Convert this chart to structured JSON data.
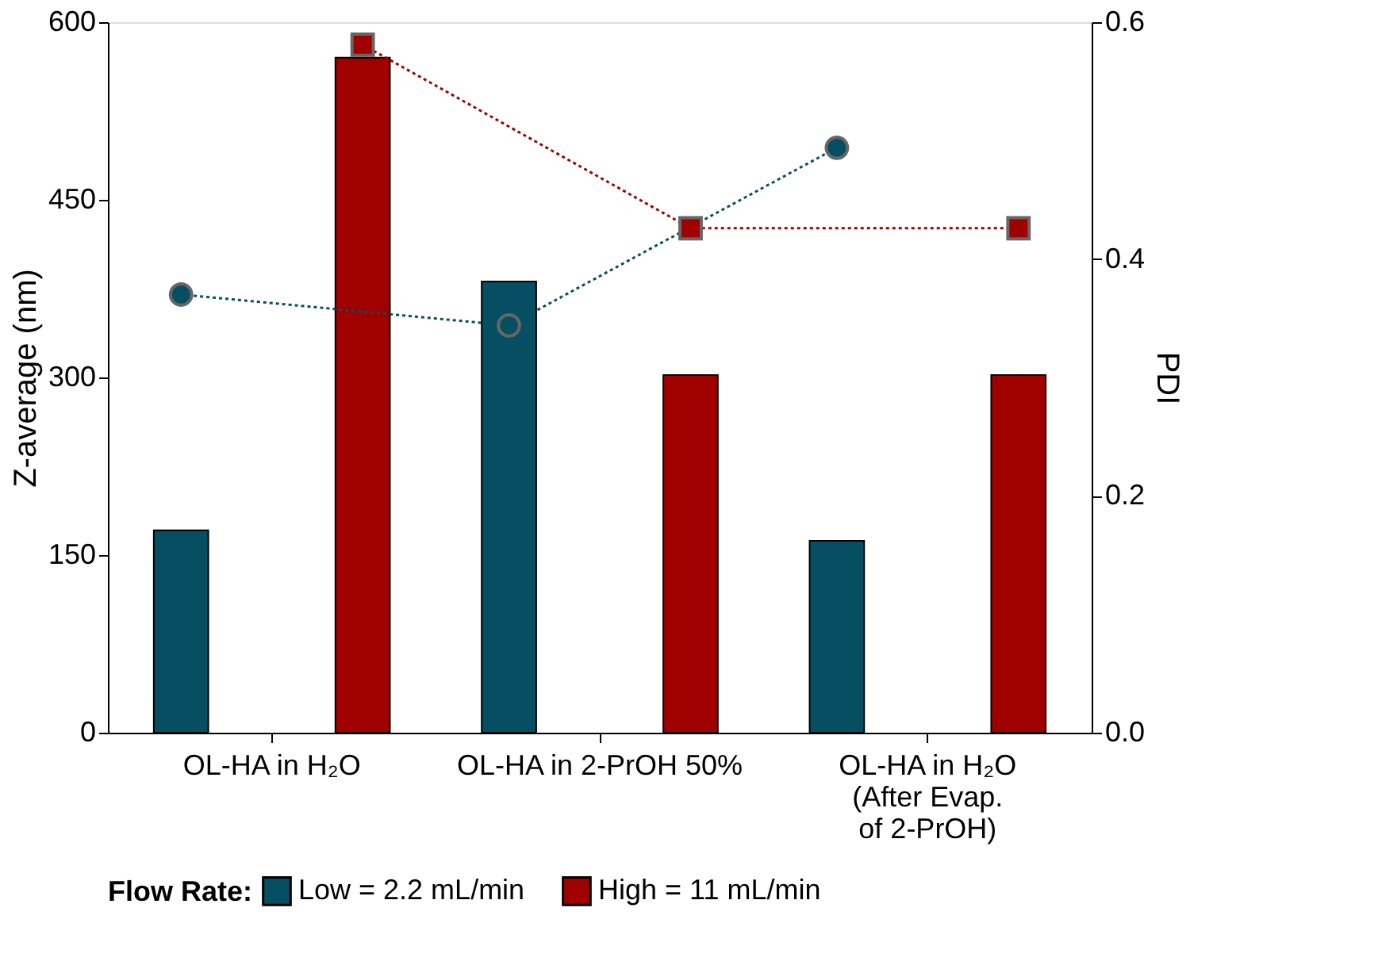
{
  "chart_data": {
    "type": "bar",
    "ylabel": "Z-average (nm)",
    "y2label": "PDI",
    "legend_title": "Flow Rate:",
    "categories": [
      "OL-HA in H₂O",
      "OL-HA in 2-PrOH 50%",
      "OL-HA in H₂O\n(After Evap.\nof 2-PrOH)"
    ],
    "series": [
      {
        "name": "Low = 2.2 mL/min",
        "color": "#064f63",
        "values": [
          171,
          381,
          162
        ]
      },
      {
        "name": "High = 11 mL/min",
        "color": "#a00000",
        "values": [
          570,
          302,
          302
        ]
      },
      {
        "type": "line",
        "axis": "y2",
        "color": "#064f63",
        "marker": "circle",
        "line_style": "dotted",
        "values": [
          0.37,
          0.344,
          0.494
        ]
      },
      {
        "type": "line",
        "axis": "y2",
        "color": "#a00000",
        "marker": "square",
        "line_style": "dotted",
        "values": [
          0.581,
          0.426,
          0.426
        ]
      }
    ],
    "ylim": [
      0,
      600
    ],
    "yticks": [
      0,
      150,
      300,
      450,
      600
    ],
    "y2lim": [
      0,
      0.6
    ],
    "y2ticks": [
      {
        "value": 0,
        "label": "0.0"
      },
      {
        "value": 0.2,
        "label": "0.2"
      },
      {
        "value": 0.4,
        "label": "0.4"
      },
      {
        "value": 0.6,
        "label": "0.6"
      }
    ],
    "grid": false,
    "legend": "bottom"
  }
}
